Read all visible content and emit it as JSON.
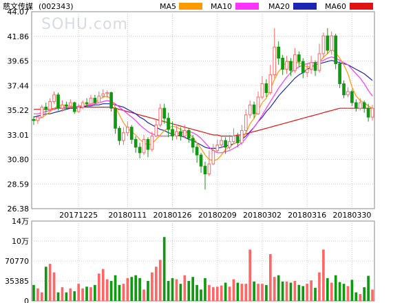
{
  "title": "慈文传媒",
  "code": "(002343)",
  "watermark": "SOHU.com",
  "legend": [
    {
      "name": "MA5",
      "color": "#ff9900"
    },
    {
      "name": "MA10",
      "color": "#ff33ff"
    },
    {
      "name": "MA20",
      "color": "#1c24b4"
    },
    {
      "name": "MA60",
      "color": "#e11212"
    }
  ],
  "colors": {
    "up": "#ff6666",
    "down": "#109910"
  },
  "chart_data": {
    "type": "candlestick",
    "price_axis": {
      "ylim": [
        26.38,
        44.07
      ],
      "ticks": [
        "44.07",
        "41.86",
        "39.65",
        "37.44",
        "35.22",
        "33.01",
        "30.80",
        "28.59",
        "26.38"
      ]
    },
    "date_ticks": [
      {
        "label": "20171225",
        "index": 11
      },
      {
        "label": "20180111",
        "index": 23
      },
      {
        "label": "20180126",
        "index": 34
      },
      {
        "label": "20180209",
        "index": 45
      },
      {
        "label": "20180302",
        "index": 56
      },
      {
        "label": "20180316",
        "index": 67
      },
      {
        "label": "20180330",
        "index": 78
      }
    ],
    "volume_axis": {
      "ylim": [
        0,
        140000
      ],
      "ticks": [
        "14万",
        "10万",
        "70770",
        "35385",
        "0"
      ]
    },
    "candles": [
      [
        34.4,
        34.3,
        34.7,
        33.9,
        0
      ],
      [
        34.3,
        34.6,
        34.8,
        34.0,
        1
      ],
      [
        34.6,
        35.5,
        35.7,
        34.5,
        1
      ],
      [
        35.5,
        35.3,
        35.9,
        35.0,
        0
      ],
      [
        35.3,
        36.0,
        36.3,
        35.2,
        1
      ],
      [
        36.0,
        36.6,
        36.9,
        35.8,
        1
      ],
      [
        36.6,
        35.4,
        36.8,
        35.2,
        0
      ],
      [
        35.4,
        35.7,
        36.1,
        35.1,
        1
      ],
      [
        35.7,
        35.6,
        36.0,
        35.3,
        0
      ],
      [
        35.6,
        35.9,
        36.2,
        35.4,
        1
      ],
      [
        35.9,
        35.1,
        36.0,
        34.9,
        0
      ],
      [
        35.1,
        35.5,
        35.8,
        35.0,
        1
      ],
      [
        35.5,
        35.9,
        36.1,
        35.3,
        1
      ],
      [
        35.9,
        35.8,
        36.3,
        35.5,
        0
      ],
      [
        35.8,
        36.3,
        36.6,
        35.7,
        1
      ],
      [
        36.3,
        35.9,
        36.6,
        35.8,
        0
      ],
      [
        35.9,
        36.5,
        36.9,
        35.8,
        1
      ],
      [
        36.5,
        36.7,
        37.1,
        36.3,
        1
      ],
      [
        36.7,
        36.8,
        37.0,
        36.3,
        1
      ],
      [
        36.8,
        35.4,
        36.9,
        35.1,
        0
      ],
      [
        35.4,
        33.6,
        35.5,
        33.1,
        0
      ],
      [
        33.6,
        32.5,
        33.8,
        32.1,
        0
      ],
      [
        32.5,
        33.2,
        33.7,
        32.1,
        1
      ],
      [
        33.2,
        33.7,
        34.2,
        32.9,
        1
      ],
      [
        33.7,
        32.6,
        33.9,
        32.2,
        0
      ],
      [
        32.6,
        31.9,
        32.9,
        31.4,
        0
      ],
      [
        31.9,
        31.4,
        32.3,
        30.9,
        0
      ],
      [
        31.4,
        32.6,
        33.0,
        31.2,
        1
      ],
      [
        32.6,
        31.7,
        32.8,
        31.0,
        0
      ],
      [
        31.7,
        32.9,
        33.3,
        31.5,
        1
      ],
      [
        32.9,
        33.9,
        34.4,
        32.8,
        1
      ],
      [
        33.9,
        35.4,
        35.8,
        33.7,
        1
      ],
      [
        35.4,
        34.5,
        35.8,
        34.0,
        0
      ],
      [
        34.5,
        33.5,
        35.0,
        32.8,
        0
      ],
      [
        33.5,
        32.9,
        34.2,
        32.5,
        0
      ],
      [
        32.9,
        33.3,
        33.8,
        32.6,
        1
      ],
      [
        33.3,
        32.9,
        33.7,
        32.5,
        0
      ],
      [
        32.9,
        33.4,
        33.9,
        32.7,
        1
      ],
      [
        33.4,
        32.7,
        33.6,
        32.3,
        0
      ],
      [
        32.7,
        31.9,
        33.0,
        31.4,
        0
      ],
      [
        31.9,
        31.2,
        32.2,
        30.5,
        0
      ],
      [
        31.2,
        30.2,
        31.4,
        29.6,
        0
      ],
      [
        30.2,
        29.5,
        30.6,
        28.1,
        0
      ],
      [
        29.5,
        30.4,
        31.6,
        29.3,
        1
      ],
      [
        30.4,
        31.6,
        32.2,
        30.3,
        1
      ],
      [
        31.6,
        32.1,
        32.6,
        31.4,
        1
      ],
      [
        32.1,
        32.5,
        32.9,
        31.8,
        1
      ],
      [
        32.5,
        31.9,
        32.8,
        31.3,
        0
      ],
      [
        31.9,
        32.4,
        33.0,
        31.7,
        1
      ],
      [
        32.4,
        32.9,
        33.6,
        32.2,
        1
      ],
      [
        32.9,
        32.3,
        33.2,
        31.9,
        0
      ],
      [
        32.3,
        33.4,
        33.9,
        32.1,
        1
      ],
      [
        33.4,
        34.8,
        35.3,
        33.2,
        1
      ],
      [
        34.8,
        35.7,
        36.1,
        34.5,
        1
      ],
      [
        35.7,
        34.9,
        36.0,
        34.5,
        0
      ],
      [
        34.9,
        36.4,
        36.9,
        34.8,
        1
      ],
      [
        36.4,
        37.6,
        38.3,
        36.2,
        1
      ],
      [
        37.6,
        36.8,
        38.0,
        36.4,
        0
      ],
      [
        36.8,
        38.4,
        39.3,
        36.6,
        1
      ],
      [
        38.4,
        40.9,
        42.6,
        38.1,
        1
      ],
      [
        40.9,
        39.9,
        41.4,
        39.3,
        0
      ],
      [
        39.9,
        38.9,
        40.2,
        38.4,
        0
      ],
      [
        38.9,
        39.6,
        40.1,
        38.5,
        1
      ],
      [
        39.6,
        38.8,
        39.9,
        38.3,
        0
      ],
      [
        38.8,
        40.2,
        40.8,
        38.6,
        1
      ],
      [
        40.2,
        39.6,
        40.5,
        39.1,
        0
      ],
      [
        39.6,
        38.6,
        39.9,
        38.1,
        0
      ],
      [
        38.6,
        38.9,
        39.4,
        38.2,
        1
      ],
      [
        38.9,
        39.5,
        40.1,
        38.5,
        1
      ],
      [
        39.5,
        38.8,
        39.7,
        38.3,
        0
      ],
      [
        38.8,
        40.3,
        41.2,
        38.6,
        1
      ],
      [
        40.3,
        41.9,
        42.2,
        39.9,
        1
      ],
      [
        41.9,
        40.6,
        42.6,
        40.3,
        0
      ],
      [
        40.6,
        41.9,
        42.3,
        40.2,
        1
      ],
      [
        41.9,
        39.4,
        42.1,
        38.9,
        0
      ],
      [
        39.4,
        37.6,
        39.6,
        37.2,
        0
      ],
      [
        37.6,
        36.6,
        37.9,
        36.3,
        0
      ],
      [
        36.6,
        36.9,
        37.3,
        36.4,
        1
      ],
      [
        36.9,
        35.9,
        37.1,
        35.6,
        0
      ],
      [
        35.9,
        35.4,
        36.2,
        35.1,
        0
      ],
      [
        35.4,
        35.9,
        36.3,
        35.2,
        1
      ],
      [
        35.9,
        35.4,
        36.1,
        35.0,
        0
      ],
      [
        35.4,
        34.6,
        35.8,
        34.2,
        0
      ],
      [
        34.6,
        35.4,
        35.7,
        34.3,
        1
      ]
    ],
    "volumes": [
      28000,
      22000,
      15000,
      60000,
      65000,
      50000,
      15000,
      24000,
      15000,
      22000,
      17000,
      30000,
      22000,
      25000,
      24000,
      28000,
      48000,
      56000,
      38000,
      35000,
      45000,
      28000,
      30000,
      40000,
      42000,
      45000,
      40000,
      20000,
      35000,
      50000,
      60000,
      72000,
      112000,
      35000,
      40000,
      38000,
      30000,
      45000,
      35000,
      42000,
      28000,
      20000,
      40000,
      28000,
      24000,
      25000,
      27000,
      32000,
      25000,
      38000,
      32000,
      30000,
      30000,
      90000,
      34000,
      30000,
      30000,
      28000,
      82000,
      42000,
      45000,
      34000,
      34000,
      32000,
      35000,
      28000,
      26000,
      30000,
      36000,
      23000,
      50000,
      90000,
      40000,
      32000,
      45000,
      33000,
      30000,
      26000,
      37000,
      15000,
      12000,
      24000,
      44000,
      20000
    ],
    "ma5": [
      34.3,
      34.4,
      34.6,
      34.8,
      35.1,
      35.4,
      35.6,
      35.7,
      35.6,
      35.6,
      35.5,
      35.5,
      35.6,
      35.7,
      35.8,
      35.9,
      36.2,
      36.4,
      36.5,
      36.2,
      35.5,
      34.8,
      34.1,
      33.6,
      33.3,
      33.0,
      32.6,
      32.3,
      32.1,
      32.2,
      32.6,
      33.0,
      33.4,
      33.6,
      33.8,
      33.7,
      33.5,
      33.3,
      33.1,
      32.8,
      32.3,
      31.8,
      31.2,
      30.8,
      30.7,
      30.8,
      31.2,
      31.7,
      31.9,
      32.2,
      32.4,
      32.6,
      33.2,
      34.0,
      34.5,
      35.2,
      35.9,
      36.3,
      37.1,
      38.0,
      38.7,
      39.1,
      39.6,
      39.6,
      39.5,
      39.5,
      39.3,
      39.1,
      39.2,
      39.2,
      39.5,
      40.0,
      40.3,
      40.7,
      40.4,
      39.9,
      39.3,
      38.5,
      37.3,
      36.5,
      36.1,
      35.9,
      35.6,
      35.4
    ],
    "ma10": [
      34.9,
      34.9,
      35.0,
      35.1,
      35.2,
      35.3,
      35.4,
      35.5,
      35.5,
      35.5,
      35.5,
      35.6,
      35.6,
      35.7,
      35.7,
      35.8,
      35.9,
      36.0,
      36.1,
      36.0,
      35.8,
      35.5,
      35.2,
      34.9,
      34.6,
      34.3,
      33.9,
      33.6,
      33.3,
      33.1,
      33.0,
      32.9,
      32.9,
      32.9,
      33.0,
      33.1,
      33.2,
      33.3,
      33.3,
      33.2,
      33.0,
      32.7,
      32.3,
      31.9,
      31.6,
      31.4,
      31.4,
      31.5,
      31.6,
      31.8,
      32.0,
      32.3,
      32.7,
      33.2,
      33.7,
      34.2,
      34.8,
      35.4,
      36.0,
      36.6,
      37.2,
      37.7,
      38.2,
      38.6,
      38.9,
      39.1,
      39.3,
      39.4,
      39.5,
      39.5,
      39.6,
      39.7,
      39.9,
      40.0,
      39.9,
      39.7,
      39.5,
      39.3,
      38.9,
      38.5,
      38.1,
      37.6,
      37.0,
      36.5
    ],
    "ma20": [
      34.6,
      34.7,
      34.8,
      34.9,
      34.9,
      35.0,
      35.1,
      35.2,
      35.3,
      35.4,
      35.4,
      35.5,
      35.5,
      35.6,
      35.6,
      35.7,
      35.7,
      35.8,
      35.8,
      35.8,
      35.7,
      35.6,
      35.5,
      35.3,
      35.1,
      34.9,
      34.6,
      34.4,
      34.1,
      33.9,
      33.7,
      33.5,
      33.4,
      33.2,
      33.1,
      33.0,
      32.9,
      32.8,
      32.6,
      32.5,
      32.3,
      32.1,
      31.9,
      31.8,
      31.8,
      31.8,
      31.9,
      32.0,
      32.1,
      32.2,
      32.4,
      32.6,
      32.9,
      33.3,
      33.7,
      34.2,
      34.6,
      35.1,
      35.5,
      36.0,
      36.5,
      36.9,
      37.3,
      37.7,
      38.1,
      38.4,
      38.6,
      38.9,
      39.1,
      39.3,
      39.4,
      39.5,
      39.6,
      39.7,
      39.6,
      39.5,
      39.4,
      39.3,
      39.1,
      38.9,
      38.7,
      38.5,
      38.2,
      37.9
    ],
    "ma60": [
      35.3,
      35.3,
      35.3,
      35.3,
      35.3,
      35.4,
      35.4,
      35.4,
      35.4,
      35.4,
      35.4,
      35.4,
      35.5,
      35.5,
      35.5,
      35.5,
      35.5,
      35.5,
      35.5,
      35.5,
      35.4,
      35.3,
      35.2,
      35.1,
      35.0,
      34.9,
      34.8,
      34.7,
      34.6,
      34.5,
      34.4,
      34.3,
      34.2,
      34.1,
      34.0,
      33.9,
      33.8,
      33.7,
      33.6,
      33.5,
      33.4,
      33.3,
      33.2,
      33.1,
      33.0,
      33.0,
      32.9,
      32.9,
      32.9,
      32.9,
      33.0,
      33.0,
      33.1,
      33.2,
      33.3,
      33.4,
      33.5,
      33.6,
      33.7,
      33.8,
      33.9,
      34.0,
      34.1,
      34.2,
      34.3,
      34.4,
      34.5,
      34.6,
      34.7,
      34.8,
      34.9,
      35.0,
      35.1,
      35.2,
      35.3,
      35.4,
      35.4,
      35.4,
      35.4,
      35.4,
      35.4,
      35.4,
      35.4,
      35.4
    ]
  }
}
